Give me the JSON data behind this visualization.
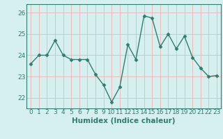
{
  "title": "",
  "xlabel": "Humidex (Indice chaleur)",
  "ylabel": "",
  "x_values": [
    0,
    1,
    2,
    3,
    4,
    5,
    6,
    7,
    8,
    9,
    10,
    11,
    12,
    13,
    14,
    15,
    16,
    17,
    18,
    19,
    20,
    21,
    22,
    23
  ],
  "y_values": [
    23.6,
    24.0,
    24.0,
    24.7,
    24.0,
    23.8,
    23.8,
    23.8,
    23.1,
    22.6,
    21.8,
    22.5,
    24.5,
    23.8,
    25.85,
    25.75,
    24.4,
    25.0,
    24.3,
    24.9,
    23.9,
    23.4,
    23.0,
    23.05
  ],
  "line_color": "#2e7d6e",
  "marker": "D",
  "marker_size": 2.5,
  "bg_color": "#d6f0f0",
  "grid_color": "#f0b0b0",
  "ylim": [
    21.5,
    26.4
  ],
  "yticks": [
    22,
    23,
    24,
    25,
    26
  ],
  "xlim": [
    -0.5,
    23.5
  ],
  "line_width": 1.0,
  "tick_color": "#2e7d6e",
  "tick_fontsize": 6.5,
  "xlabel_fontsize": 7.5,
  "spine_color": "#2e7d6e"
}
